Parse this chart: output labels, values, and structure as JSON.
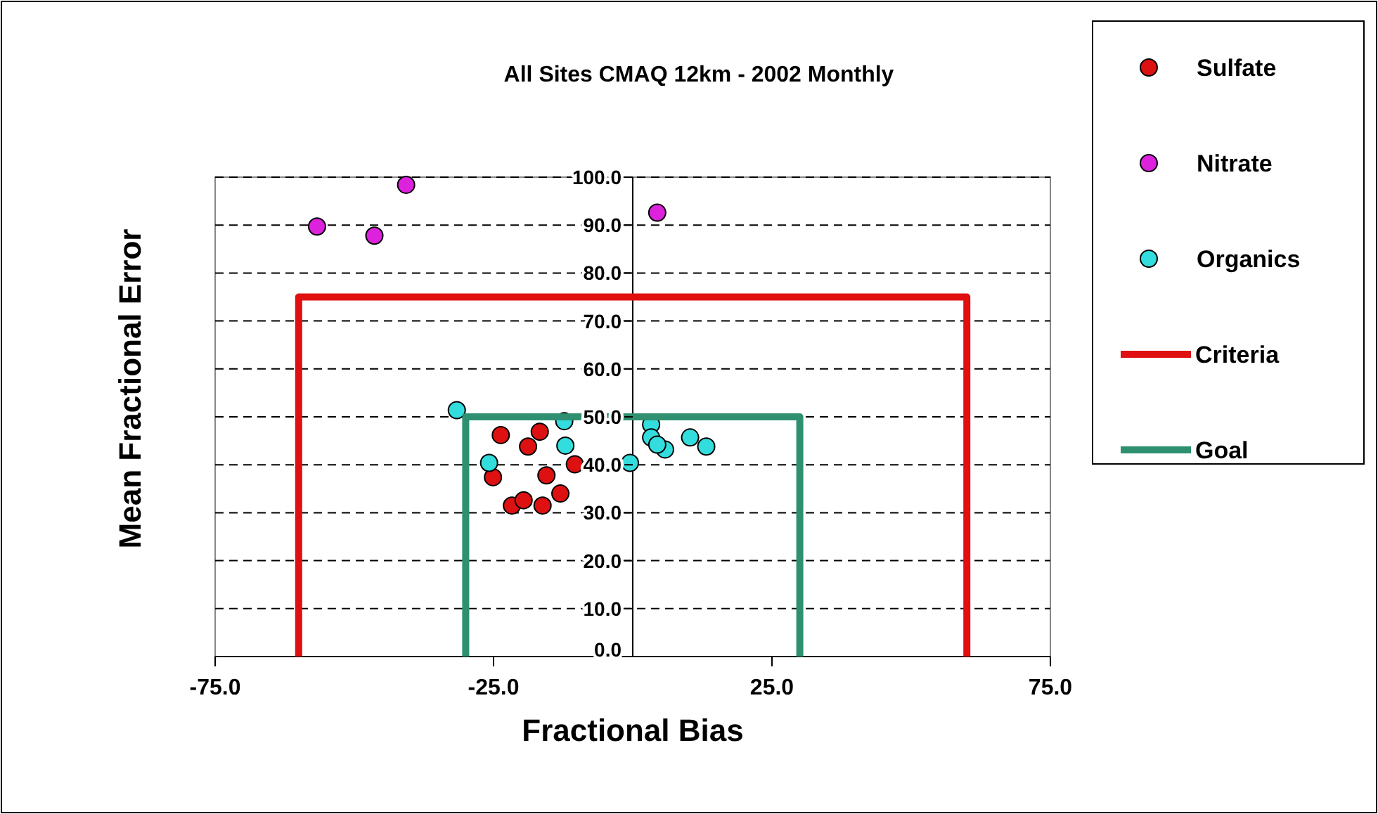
{
  "chart_data": {
    "type": "scatter",
    "title": "All Sites CMAQ 12km - 2002 Monthly",
    "xlabel": "Fractional Bias",
    "ylabel": "Mean Fractional Error",
    "xlim": [
      -75,
      75
    ],
    "ylim": [
      0,
      100
    ],
    "xticks": [
      {
        "value": -75,
        "label": "-75.0"
      },
      {
        "value": -25,
        "label": "-25.0"
      },
      {
        "value": 25,
        "label": "25.0"
      },
      {
        "value": 75,
        "label": "75.0"
      }
    ],
    "yticks": [
      {
        "value": 0,
        "label": "0.0"
      },
      {
        "value": 10,
        "label": "10.0"
      },
      {
        "value": 20,
        "label": "20.0"
      },
      {
        "value": 30,
        "label": "30.0"
      },
      {
        "value": 40,
        "label": "40.0"
      },
      {
        "value": 50,
        "label": "50.0"
      },
      {
        "value": 60,
        "label": "60.0"
      },
      {
        "value": 70,
        "label": "70.0"
      },
      {
        "value": 80,
        "label": "80.0"
      },
      {
        "value": 90,
        "label": "90.0"
      },
      {
        "value": 100,
        "label": "100.0"
      }
    ],
    "grid": "y",
    "legend": "right",
    "marker": "circle",
    "series": [
      {
        "name": "Sulfate",
        "color": "#dd1111",
        "x": [
          -23.7,
          -25.1,
          -18.8,
          -16.7,
          -15.5,
          -21.7,
          -19.6,
          -16.2,
          -13,
          -10.4
        ],
        "values": [
          46.2,
          37.4,
          43.8,
          46.9,
          37.8,
          31.5,
          32.6,
          31.5,
          34,
          40.1
        ]
      },
      {
        "name": "Nitrate",
        "color": "#dd22dd",
        "x": [
          -56.7,
          -46.4,
          -40.7,
          4.4
        ],
        "values": [
          89.7,
          87.8,
          98.4,
          92.6
        ]
      },
      {
        "name": "Organics",
        "color": "#33dddd",
        "x": [
          -31.6,
          -25.8,
          -12.3,
          -12.1,
          -0.5,
          3.3,
          3.3,
          5.8,
          4.4,
          10.3,
          13.2
        ],
        "values": [
          51.4,
          40.4,
          49.1,
          44,
          40.4,
          48.4,
          45.7,
          43.2,
          44.2,
          45.7,
          43.8
        ]
      },
      {
        "name": "Criteria",
        "type": "line",
        "marker": "none",
        "color": "#e01010",
        "x": [
          -60,
          -60,
          60,
          60
        ],
        "values": [
          0,
          75,
          75,
          0
        ]
      },
      {
        "name": "Goal",
        "type": "line",
        "marker": "none",
        "color": "#2e9070",
        "x": [
          -30,
          -30,
          30,
          30
        ],
        "values": [
          0,
          50,
          50,
          0
        ]
      }
    ]
  }
}
